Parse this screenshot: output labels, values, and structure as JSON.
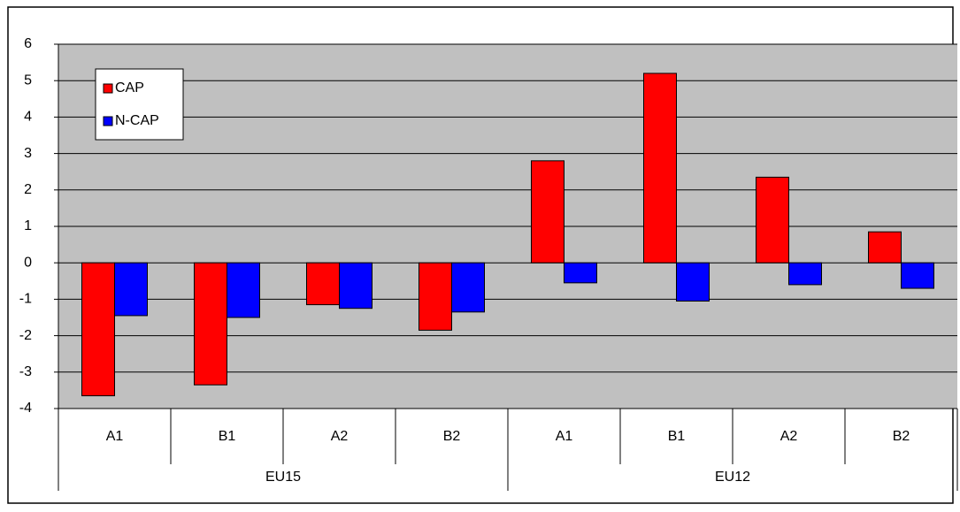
{
  "chart_data": {
    "type": "bar",
    "categories": [
      "A1",
      "B1",
      "A2",
      "B2",
      "A1",
      "B1",
      "A2",
      "B2"
    ],
    "groups": [
      "EU15",
      "EU12"
    ],
    "series": [
      {
        "name": "CAP",
        "color": "#ff0000",
        "values": [
          -3.65,
          -3.35,
          -1.15,
          -1.85,
          2.8,
          5.2,
          2.35,
          0.85
        ]
      },
      {
        "name": "N-CAP",
        "color": "#0000ff",
        "values": [
          -1.45,
          -1.5,
          -1.25,
          -1.35,
          -0.55,
          -1.05,
          -0.6,
          -0.7
        ]
      }
    ],
    "ylim": [
      -4,
      6
    ],
    "yticks": [
      -4,
      -3,
      -2,
      -1,
      0,
      1,
      2,
      3,
      4,
      5,
      6
    ],
    "grid": true,
    "legend": "top-left",
    "plot_background": "#c0c0c0"
  }
}
